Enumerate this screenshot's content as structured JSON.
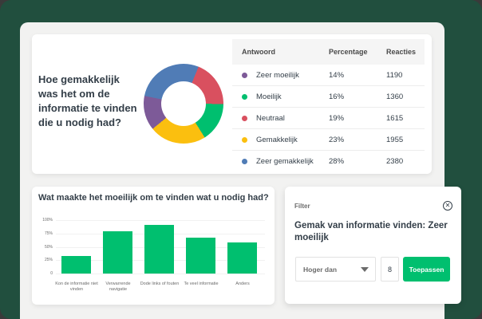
{
  "colors": {
    "background": "#214f3e",
    "panel": "#f2f2f1",
    "accent": "#00bf6f",
    "zeer_moeilijk": "#7d5a98",
    "moeilijk": "#00bf6f",
    "neutraal": "#d9505f",
    "gemakkelijk": "#fbbf0f",
    "zeer_gemakkelijk": "#507cb6"
  },
  "summary": {
    "question": "Hoe gemakkelijk was het om de informatie te vinden die u nodig had?",
    "table": {
      "headers": [
        "Antwoord",
        "Percentage",
        "Reacties"
      ],
      "rows": [
        {
          "answer": "Zeer moeilijk",
          "percentage": "14%",
          "responses": "1190",
          "color": "#7d5a98"
        },
        {
          "answer": "Moeilijk",
          "percentage": "16%",
          "responses": "1360",
          "color": "#00bf6f"
        },
        {
          "answer": "Neutraal",
          "percentage": "19%",
          "responses": "1615",
          "color": "#d9505f"
        },
        {
          "answer": "Gemakkelijk",
          "percentage": "23%",
          "responses": "1955",
          "color": "#fbbf0f"
        },
        {
          "answer": "Zeer gemakkelijk",
          "percentage": "28%",
          "responses": "2380",
          "color": "#507cb6"
        }
      ]
    }
  },
  "bar_card": {
    "title": "Wat maakte het moeilijk om te vinden wat u nodig had?"
  },
  "filter": {
    "label": "Filter",
    "title": "Gemak van informatie vinden: Zeer moeilijk",
    "select_value": "Hoger dan",
    "number_value": "8",
    "apply_label": "Toepassen",
    "close_icon": "close-circle-icon"
  },
  "chart_data": [
    {
      "type": "pie",
      "title": "Hoe gemakkelijk was het om de informatie te vinden die u nodig had?",
      "categories": [
        "Zeer moeilijk",
        "Moeilijk",
        "Neutraal",
        "Gemakkelijk",
        "Zeer gemakkelijk"
      ],
      "values": [
        14,
        16,
        19,
        23,
        28
      ],
      "responses": [
        1190,
        1360,
        1615,
        1955,
        2380
      ],
      "donut": true
    },
    {
      "type": "bar",
      "title": "Wat maakte het moeilijk om te vinden wat u nodig had?",
      "categories": [
        "Kon de informatie niet vinden",
        "Verwarrende navigatie",
        "Dode links of fouten",
        "Te veel informatie",
        "Anders"
      ],
      "values": [
        33,
        79,
        91,
        67,
        58
      ],
      "yticks": [
        "0",
        "25%",
        "50%",
        "75%",
        "100%"
      ],
      "ylim": [
        0,
        100
      ],
      "xlabel": "",
      "ylabel": "",
      "grid": true
    }
  ]
}
